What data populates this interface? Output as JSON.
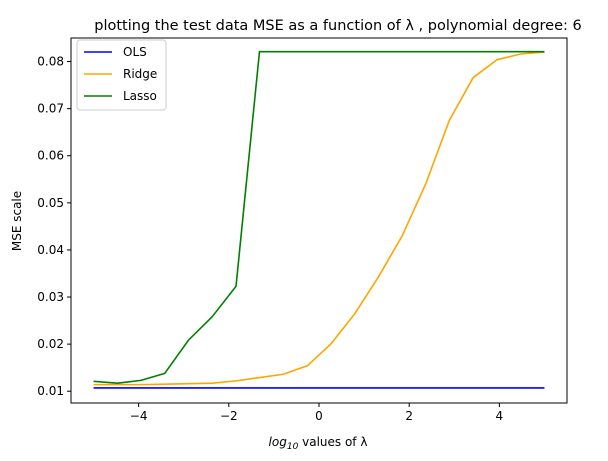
{
  "chart_data": {
    "type": "line",
    "title": "plotting the test data MSE as a function of λ , polynomial degree: 6",
    "xlabel_prefix": "log",
    "xlabel_sub": "10",
    "xlabel_suffix": " values of λ",
    "ylabel": "MSE scale",
    "xlim": [
      -5.5,
      5.5
    ],
    "ylim": [
      0.0075,
      0.085
    ],
    "x_ticks": [
      -4,
      -2,
      0,
      2,
      4
    ],
    "x_tick_labels": [
      "−4",
      "−2",
      "0",
      "2",
      "4"
    ],
    "y_ticks": [
      0.01,
      0.02,
      0.03,
      0.04,
      0.05,
      0.06,
      0.07,
      0.08
    ],
    "y_tick_labels": [
      "0.01",
      "0.02",
      "0.03",
      "0.04",
      "0.05",
      "0.06",
      "0.07",
      "0.08"
    ],
    "grid": false,
    "legend_position": "top-left",
    "x": [
      -5.0,
      -4.47,
      -3.95,
      -3.42,
      -2.89,
      -2.37,
      -1.84,
      -1.32,
      -0.79,
      -0.26,
      0.26,
      0.79,
      1.32,
      1.84,
      2.37,
      2.89,
      3.42,
      3.95,
      4.47,
      5.0
    ],
    "series": [
      {
        "name": "OLS",
        "color": "#0000ff",
        "values": [
          0.0107,
          0.0107,
          0.0107,
          0.0107,
          0.0107,
          0.0107,
          0.0107,
          0.0107,
          0.0107,
          0.0107,
          0.0107,
          0.0107,
          0.0107,
          0.0107,
          0.0107,
          0.0107,
          0.0107,
          0.0107,
          0.0107,
          0.0107
        ]
      },
      {
        "name": "Ridge",
        "color": "#ffa500",
        "values": [
          0.0114,
          0.0114,
          0.0114,
          0.0115,
          0.0116,
          0.0117,
          0.0122,
          0.0129,
          0.0136,
          0.0154,
          0.02,
          0.0264,
          0.0343,
          0.0429,
          0.0541,
          0.0675,
          0.0766,
          0.0804,
          0.0816,
          0.082
        ]
      },
      {
        "name": "Lasso",
        "color": "#008000",
        "values": [
          0.0121,
          0.0117,
          0.0123,
          0.0138,
          0.0209,
          0.0258,
          0.0323,
          0.0821,
          0.0821,
          0.0821,
          0.0821,
          0.0821,
          0.0821,
          0.0821,
          0.0821,
          0.0821,
          0.0821,
          0.0821,
          0.0821,
          0.0821
        ]
      }
    ]
  }
}
